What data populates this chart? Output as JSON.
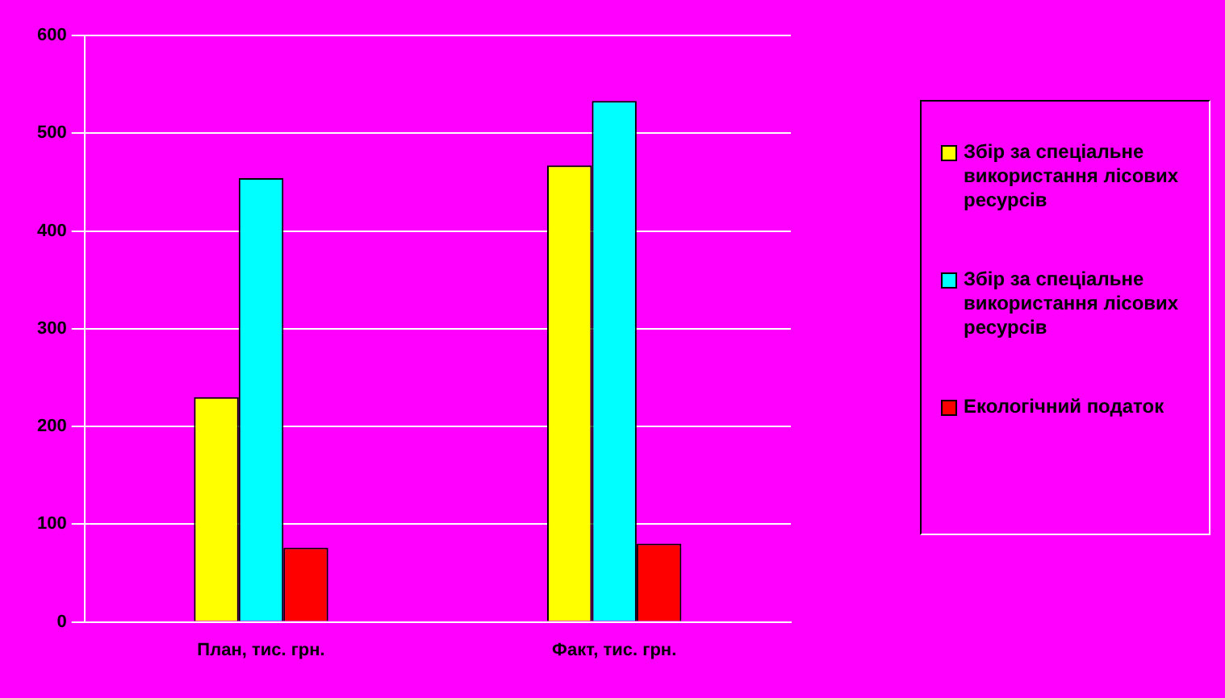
{
  "chart_data": {
    "type": "bar",
    "categories": [
      "План, тис. грн.",
      "Факт, тис. грн."
    ],
    "series": [
      {
        "name": "Збір за спеціальне використання лісових ресурсів",
        "color": "#ffff00",
        "values": [
          230,
          467
        ]
      },
      {
        "name": "Збір за спеціальне використання лісових ресурсів",
        "color": "#00ffff",
        "values": [
          454,
          533
        ]
      },
      {
        "name": "Екологічний податок",
        "color": "#ff0000",
        "values": [
          76,
          80
        ]
      }
    ],
    "ylim": [
      0,
      600
    ],
    "yticks": [
      0,
      100,
      200,
      300,
      400,
      500,
      600
    ],
    "grid": "y",
    "legend": "right"
  }
}
